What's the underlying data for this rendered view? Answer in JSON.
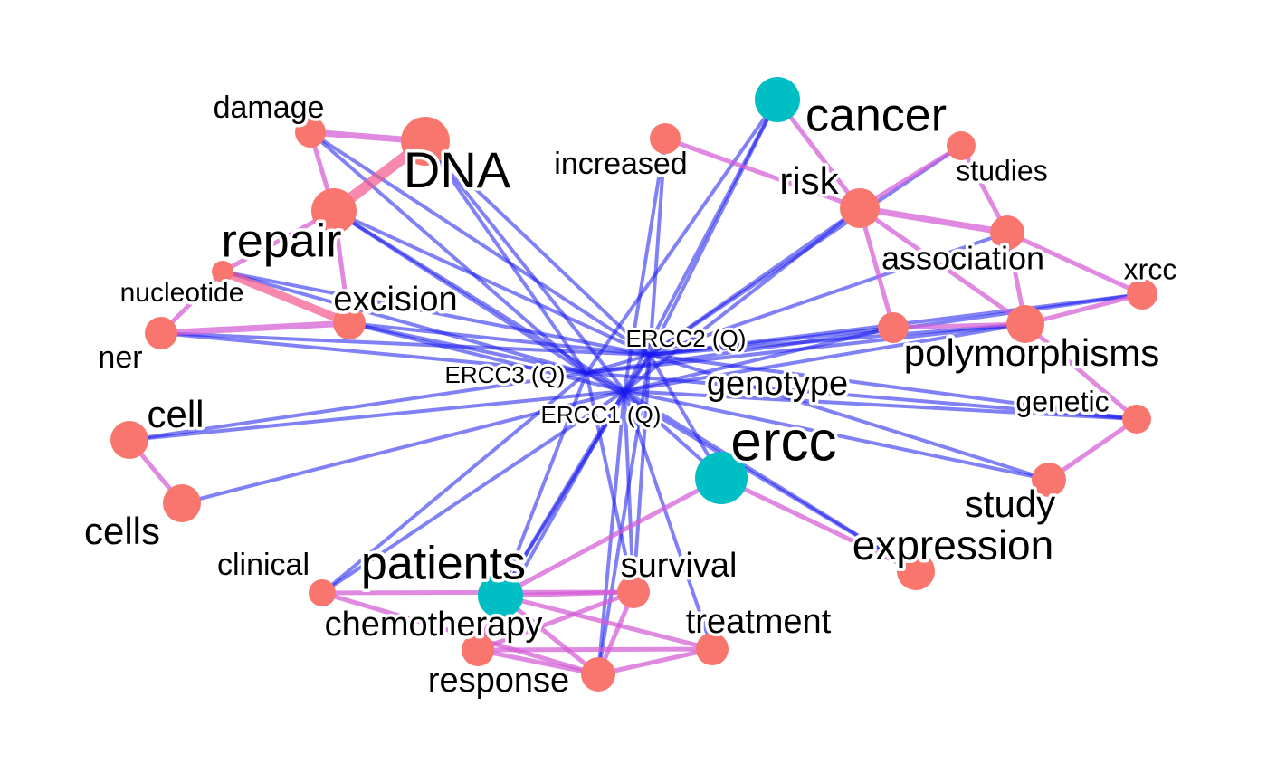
{
  "colors": {
    "term_node": "#f8766d",
    "seed_node": "#00bfc4",
    "query_edge": "#1a1aee",
    "term_edge": "#d45bd6",
    "strong_edge": "#f25b8d",
    "label_fill": "#000000",
    "label_halo": "#ffffff"
  },
  "query_nodes": [
    {
      "id": "ERCC2 (Q)",
      "label": "ERCC2 (Q)"
    },
    {
      "id": "ERCC3 (Q)",
      "label": "ERCC3 (Q)"
    },
    {
      "id": "ERCC1 (Q)",
      "label": "ERCC1 (Q)"
    }
  ],
  "term_nodes": [
    {
      "id": "damage",
      "label": "damage",
      "kind": "term"
    },
    {
      "id": "DNA",
      "label": "DNA",
      "kind": "term"
    },
    {
      "id": "repair",
      "label": "repair",
      "kind": "term"
    },
    {
      "id": "nucleotide",
      "label": "nucleotide",
      "kind": "term"
    },
    {
      "id": "excision",
      "label": "excision",
      "kind": "term"
    },
    {
      "id": "ner",
      "label": "ner",
      "kind": "term"
    },
    {
      "id": "cell",
      "label": "cell",
      "kind": "term"
    },
    {
      "id": "cells",
      "label": "cells",
      "kind": "term"
    },
    {
      "id": "increased",
      "label": "increased",
      "kind": "term"
    },
    {
      "id": "cancer",
      "label": "cancer",
      "kind": "seed"
    },
    {
      "id": "risk",
      "label": "risk",
      "kind": "term"
    },
    {
      "id": "studies",
      "label": "studies",
      "kind": "term"
    },
    {
      "id": "association",
      "label": "association",
      "kind": "term"
    },
    {
      "id": "xrcc",
      "label": "xrcc",
      "kind": "term"
    },
    {
      "id": "polymorphisms",
      "label": "polymorphisms",
      "kind": "term"
    },
    {
      "id": "genotype",
      "label": "genotype",
      "kind": "term"
    },
    {
      "id": "genetic",
      "label": "genetic",
      "kind": "term"
    },
    {
      "id": "ercc",
      "label": "ercc",
      "kind": "seed"
    },
    {
      "id": "study",
      "label": "study",
      "kind": "term"
    },
    {
      "id": "expression",
      "label": "expression",
      "kind": "term"
    },
    {
      "id": "clinical",
      "label": "clinical",
      "kind": "term"
    },
    {
      "id": "patients",
      "label": "patients",
      "kind": "seed"
    },
    {
      "id": "survival",
      "label": "survival",
      "kind": "term"
    },
    {
      "id": "chemotherapy",
      "label": "chemotherapy",
      "kind": "term"
    },
    {
      "id": "treatment",
      "label": "treatment",
      "kind": "term"
    },
    {
      "id": "response",
      "label": "response",
      "kind": "term"
    }
  ],
  "query_edges": [
    [
      "ERCC2 (Q)",
      "damage"
    ],
    [
      "ERCC2 (Q)",
      "DNA"
    ],
    [
      "ERCC2 (Q)",
      "repair"
    ],
    [
      "ERCC2 (Q)",
      "nucleotide"
    ],
    [
      "ERCC2 (Q)",
      "excision"
    ],
    [
      "ERCC2 (Q)",
      "ner"
    ],
    [
      "ERCC2 (Q)",
      "increased"
    ],
    [
      "ERCC2 (Q)",
      "cancer"
    ],
    [
      "ERCC2 (Q)",
      "risk"
    ],
    [
      "ERCC2 (Q)",
      "studies"
    ],
    [
      "ERCC2 (Q)",
      "association"
    ],
    [
      "ERCC2 (Q)",
      "xrcc"
    ],
    [
      "ERCC2 (Q)",
      "polymorphisms"
    ],
    [
      "ERCC2 (Q)",
      "genotype"
    ],
    [
      "ERCC2 (Q)",
      "genetic"
    ],
    [
      "ERCC2 (Q)",
      "ercc"
    ],
    [
      "ERCC2 (Q)",
      "study"
    ],
    [
      "ERCC2 (Q)",
      "patients"
    ],
    [
      "ERCC2 (Q)",
      "survival"
    ],
    [
      "ERCC2 (Q)",
      "response"
    ],
    [
      "ERCC3 (Q)",
      "repair"
    ],
    [
      "ERCC3 (Q)",
      "excision"
    ],
    [
      "ERCC3 (Q)",
      "nucleotide"
    ],
    [
      "ERCC3 (Q)",
      "ner"
    ],
    [
      "ERCC3 (Q)",
      "DNA"
    ],
    [
      "ERCC3 (Q)",
      "damage"
    ],
    [
      "ERCC3 (Q)",
      "cell"
    ],
    [
      "ERCC3 (Q)",
      "cancer"
    ],
    [
      "ERCC3 (Q)",
      "polymorphisms"
    ],
    [
      "ERCC3 (Q)",
      "xrcc"
    ],
    [
      "ERCC3 (Q)",
      "genetic"
    ],
    [
      "ERCC3 (Q)",
      "expression"
    ],
    [
      "ERCC3 (Q)",
      "patients"
    ],
    [
      "ERCC3 (Q)",
      "clinical"
    ],
    [
      "ERCC3 (Q)",
      "survival"
    ],
    [
      "ERCC1 (Q)",
      "cells"
    ],
    [
      "ERCC1 (Q)",
      "cell"
    ],
    [
      "ERCC1 (Q)",
      "patients"
    ],
    [
      "ERCC1 (Q)",
      "clinical"
    ],
    [
      "ERCC1 (Q)",
      "chemotherapy"
    ],
    [
      "ERCC1 (Q)",
      "response"
    ],
    [
      "ERCC1 (Q)",
      "survival"
    ],
    [
      "ERCC1 (Q)",
      "treatment"
    ],
    [
      "ERCC1 (Q)",
      "expression"
    ],
    [
      "ERCC1 (Q)",
      "study"
    ],
    [
      "ERCC1 (Q)",
      "genetic"
    ],
    [
      "ERCC1 (Q)",
      "genotype"
    ],
    [
      "ERCC1 (Q)",
      "ercc"
    ],
    [
      "ERCC1 (Q)",
      "polymorphisms"
    ],
    [
      "ERCC1 (Q)",
      "risk"
    ],
    [
      "ERCC1 (Q)",
      "cancer"
    ],
    [
      "ERCC1 (Q)",
      "DNA"
    ],
    [
      "ERCC1 (Q)",
      "repair"
    ],
    [
      "ERCC1 (Q)",
      "excision"
    ],
    [
      "ERCC1 (Q)",
      "increased"
    ],
    [
      "ERCC2 (Q)",
      "ERCC3 (Q)"
    ],
    [
      "ERCC2 (Q)",
      "ERCC1 (Q)"
    ],
    [
      "ERCC3 (Q)",
      "ERCC1 (Q)"
    ]
  ],
  "term_edges": [
    {
      "a": "damage",
      "b": "DNA",
      "w": 2
    },
    {
      "a": "damage",
      "b": "repair",
      "w": 1
    },
    {
      "a": "DNA",
      "b": "repair",
      "w": 4
    },
    {
      "a": "repair",
      "b": "excision",
      "w": 1
    },
    {
      "a": "repair",
      "b": "nucleotide",
      "w": 1
    },
    {
      "a": "nucleotide",
      "b": "ner",
      "w": 1
    },
    {
      "a": "excision",
      "b": "nucleotide",
      "w": 3
    },
    {
      "a": "ner",
      "b": "excision",
      "w": 2
    },
    {
      "a": "cell",
      "b": "cells",
      "w": 1
    },
    {
      "a": "increased",
      "b": "risk",
      "w": 1
    },
    {
      "a": "cancer",
      "b": "risk",
      "w": 1
    },
    {
      "a": "risk",
      "b": "studies",
      "w": 1
    },
    {
      "a": "risk",
      "b": "association",
      "w": 2
    },
    {
      "a": "risk",
      "b": "polymorphisms",
      "w": 1
    },
    {
      "a": "risk",
      "b": "genotype",
      "w": 1
    },
    {
      "a": "association",
      "b": "xrcc",
      "w": 1
    },
    {
      "a": "association",
      "b": "polymorphisms",
      "w": 1
    },
    {
      "a": "studies",
      "b": "association",
      "w": 1
    },
    {
      "a": "polymorphisms",
      "b": "xrcc",
      "w": 1
    },
    {
      "a": "polymorphisms",
      "b": "genetic",
      "w": 1
    },
    {
      "a": "polymorphisms",
      "b": "genotype",
      "w": 1
    },
    {
      "a": "genetic",
      "b": "study",
      "w": 1
    },
    {
      "a": "ercc",
      "b": "expression",
      "w": 1
    },
    {
      "a": "ercc",
      "b": "patients",
      "w": 1
    },
    {
      "a": "patients",
      "b": "survival",
      "w": 1
    },
    {
      "a": "patients",
      "b": "chemotherapy",
      "w": 1
    },
    {
      "a": "patients",
      "b": "treatment",
      "w": 1
    },
    {
      "a": "patients",
      "b": "response",
      "w": 1
    },
    {
      "a": "clinical",
      "b": "response",
      "w": 1
    },
    {
      "a": "clinical",
      "b": "survival",
      "w": 1
    },
    {
      "a": "chemotherapy",
      "b": "response",
      "w": 1
    },
    {
      "a": "chemotherapy",
      "b": "survival",
      "w": 1
    },
    {
      "a": "survival",
      "b": "response",
      "w": 1
    },
    {
      "a": "treatment",
      "b": "response",
      "w": 1
    },
    {
      "a": "chemotherapy",
      "b": "treatment",
      "w": 1
    }
  ]
}
